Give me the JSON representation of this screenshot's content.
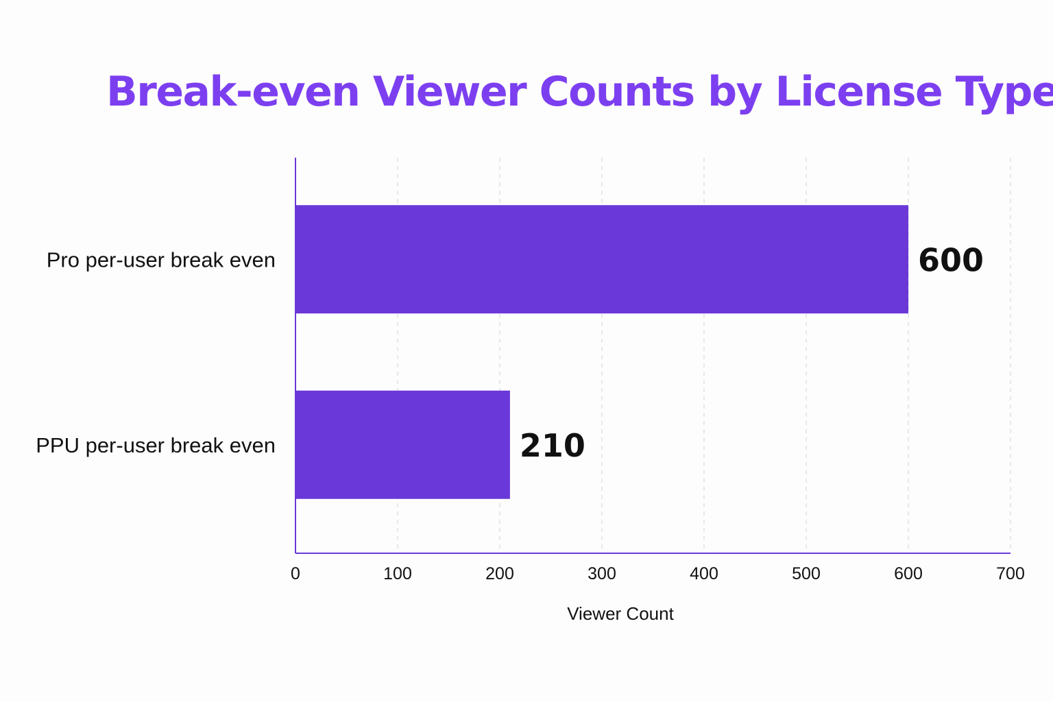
{
  "chart_data": {
    "type": "bar",
    "orientation": "horizontal",
    "title": "Break-even Viewer Counts by License Type",
    "xlabel": "Viewer Count",
    "ylabel": "",
    "categories": [
      "Pro per-user break even",
      "PPU per-user break even"
    ],
    "values": [
      600,
      210
    ],
    "data_labels": [
      "600",
      "210"
    ],
    "xlim": [
      0,
      700
    ],
    "x_ticks": [
      "0",
      "100",
      "200",
      "300",
      "400",
      "500",
      "600",
      "700"
    ],
    "grid": "vertical dashed",
    "legend": "none",
    "colors": {
      "bar": "#6a38d8",
      "axis": "#6a38d8",
      "title": "#7c3ff0",
      "grid": "#d9d9d9"
    }
  }
}
